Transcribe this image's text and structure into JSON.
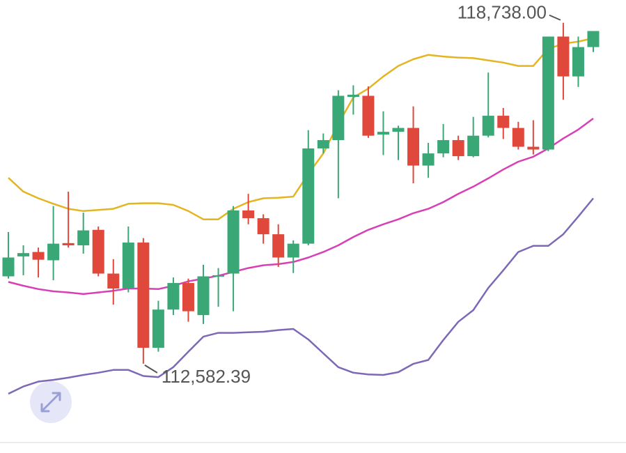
{
  "chart_data": {
    "type": "candlestick",
    "ylim": [
      110970,
      119150
    ],
    "up_color": "#3aa876",
    "down_color": "#e0483c",
    "open": [
      114160,
      114520,
      114600,
      114450,
      114760,
      114720,
      115000,
      114210,
      113940,
      114770,
      112870,
      113560,
      114040,
      113460,
      114160,
      114210,
      115350,
      115210,
      114920,
      114500,
      114750,
      116470,
      116620,
      117400,
      117420,
      116720,
      116770,
      116840,
      116160,
      116380,
      116620,
      116330,
      116700,
      117060,
      116840,
      116500,
      116450,
      118490,
      117770,
      118300
    ],
    "high": [
      114960,
      114720,
      114680,
      115430,
      115690,
      115310,
      115060,
      114470,
      115060,
      114850,
      113720,
      114140,
      114120,
      114370,
      114310,
      115430,
      115650,
      115280,
      115100,
      114810,
      116800,
      116740,
      117520,
      117610,
      117590,
      117140,
      116880,
      117230,
      116570,
      116910,
      116700,
      117040,
      117840,
      117200,
      116950,
      116980,
      118490,
      118738,
      118490,
      118590
    ],
    "low": [
      114120,
      114180,
      114140,
      114090,
      114680,
      114570,
      114160,
      113650,
      113870,
      112582.39,
      112800,
      113460,
      113340,
      113300,
      113610,
      113530,
      115100,
      114750,
      114330,
      114220,
      114720,
      116380,
      115570,
      117080,
      116660,
      116350,
      116260,
      115840,
      115940,
      116310,
      116260,
      116310,
      116670,
      116640,
      116450,
      116360,
      116420,
      117350,
      117580,
      118210
    ],
    "close": [
      114500,
      114580,
      114460,
      114750,
      114720,
      114990,
      114210,
      113940,
      114770,
      112870,
      113560,
      114040,
      113530,
      114160,
      114180,
      115350,
      115210,
      114920,
      114500,
      114750,
      116470,
      116620,
      117420,
      117440,
      116700,
      116770,
      116840,
      116160,
      116380,
      116620,
      116330,
      116700,
      117060,
      116840,
      116500,
      116450,
      118490,
      117770,
      118300,
      118590
    ],
    "series": [
      {
        "color": "#e3b520",
        "values": [
          115940,
          115690,
          115570,
          115470,
          115380,
          115340,
          115360,
          115380,
          115470,
          115480,
          115480,
          115450,
          115340,
          115190,
          115190,
          115380,
          115500,
          115570,
          115580,
          115600,
          116010,
          116380,
          116910,
          117390,
          117550,
          117770,
          117960,
          118080,
          118160,
          118130,
          118110,
          118100,
          118060,
          118020,
          117960,
          117960,
          118270,
          118360,
          118400,
          118460
        ]
      },
      {
        "color": "#d83fb5",
        "values": [
          114060,
          113990,
          113930,
          113890,
          113870,
          113840,
          113870,
          113900,
          113940,
          113940,
          113930,
          113990,
          114070,
          114120,
          114170,
          114240,
          114310,
          114360,
          114380,
          114420,
          114500,
          114600,
          114720,
          114870,
          115000,
          115100,
          115190,
          115300,
          115380,
          115500,
          115650,
          115780,
          115930,
          116090,
          116230,
          116320,
          116470,
          116650,
          116810,
          117010
        ]
      },
      {
        "color": "#7d68b8",
        "values": [
          112040,
          112170,
          112260,
          112290,
          112330,
          112380,
          112420,
          112470,
          112470,
          112360,
          112340,
          112520,
          112800,
          113070,
          113140,
          113140,
          113150,
          113160,
          113190,
          113210,
          113020,
          112770,
          112520,
          112420,
          112390,
          112380,
          112430,
          112580,
          112650,
          113010,
          113340,
          113550,
          113950,
          114270,
          114600,
          114710,
          114710,
          114920,
          115240,
          115570
        ]
      }
    ],
    "max_label": "118,738.00",
    "min_label": "112,582.39"
  }
}
